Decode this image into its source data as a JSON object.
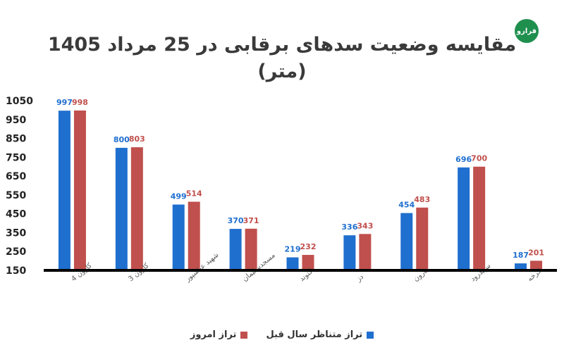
{
  "logo_text": "فرارو",
  "colors": {
    "previous": "#1f6fcf",
    "today": "#c0504d",
    "axis": "#000000",
    "label": "#595959"
  },
  "chart_data": {
    "type": "bar",
    "title": "مقایسه وضعیت سدهای برقابی در 25 مرداد 1405",
    "subtitle": "(متر)",
    "categories": [
      "کارون 4",
      "کارون 3",
      "شهید عباسپور",
      "مسجدسلیمان",
      "گتوند",
      "دز",
      "مارون",
      "سپیدرود",
      "کرخه"
    ],
    "series": [
      {
        "name": "تراز متناظر سال قبل",
        "values": [
          997,
          800,
          499,
          370,
          219,
          336,
          454,
          696,
          187
        ]
      },
      {
        "name": "تراز امروز",
        "values": [
          998,
          803,
          514,
          371,
          232,
          343,
          483,
          700,
          201
        ]
      }
    ],
    "yticks": [
      150,
      250,
      350,
      450,
      550,
      650,
      750,
      850,
      950,
      1050
    ],
    "ylim": [
      150,
      1050
    ],
    "grid": false,
    "legend_position": "bottom"
  }
}
